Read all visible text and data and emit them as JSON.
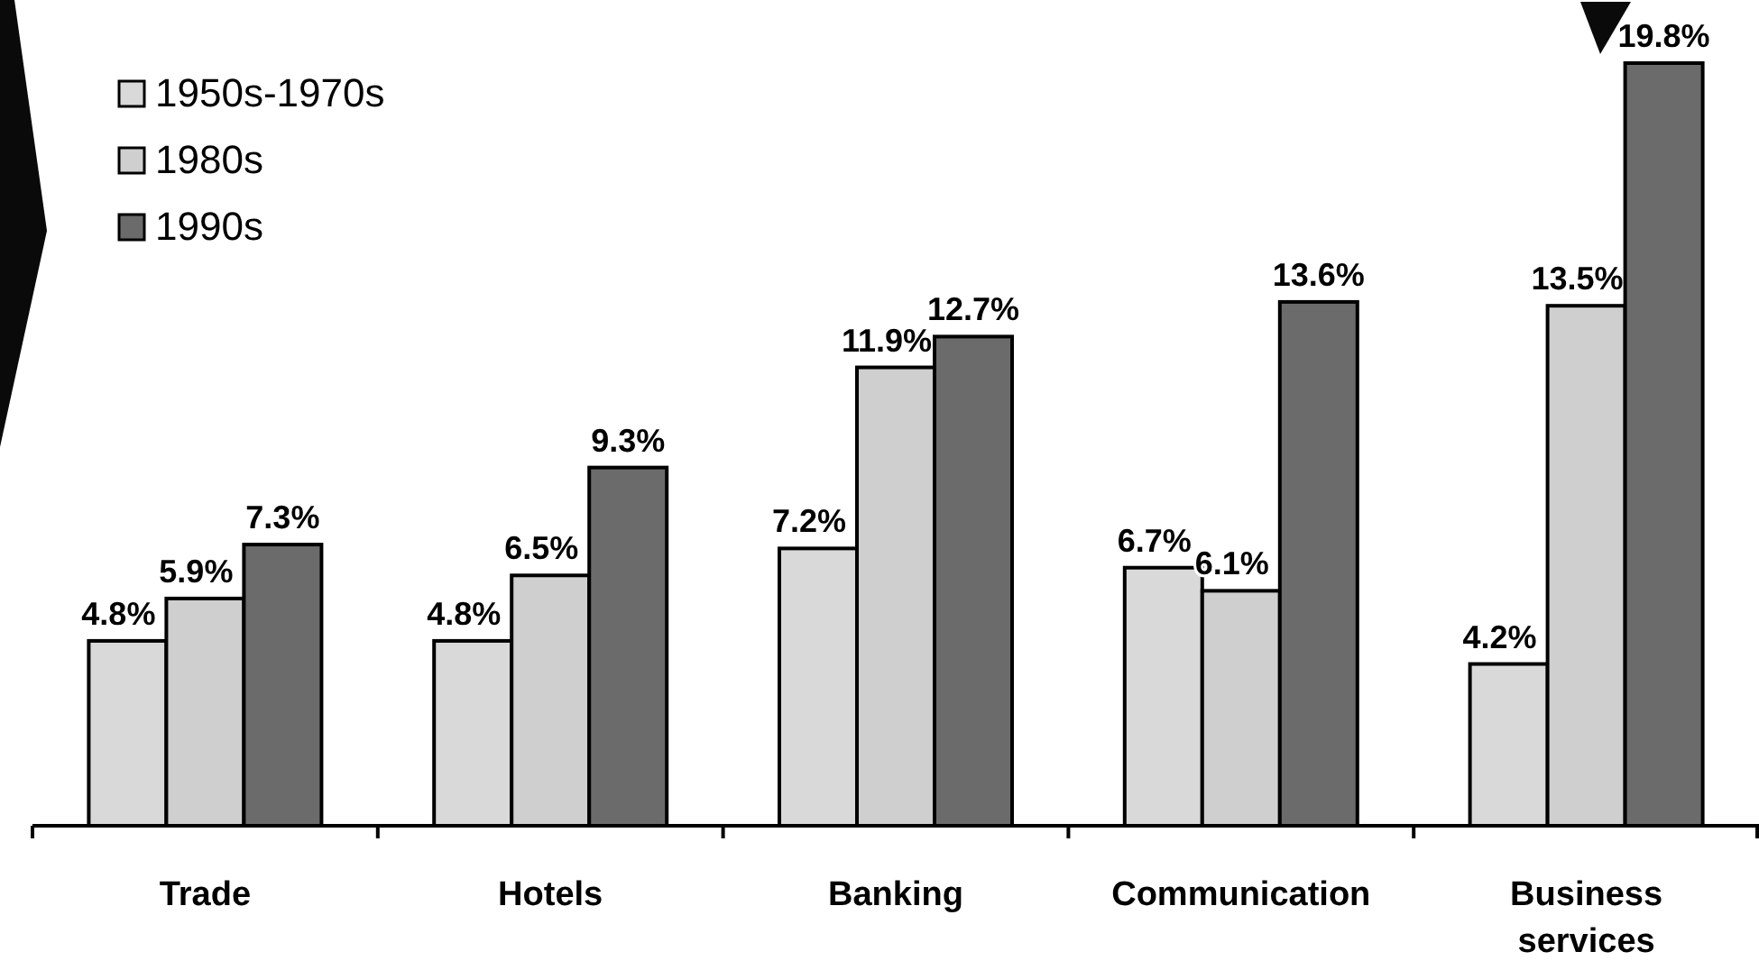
{
  "chart_data": {
    "type": "bar",
    "categories": [
      "Trade",
      "Hotels",
      "Banking",
      "Communication",
      "Business services"
    ],
    "series": [
      {
        "name": "1950s-1970s",
        "color": "#d9d9d9",
        "values": [
          4.8,
          4.8,
          7.2,
          6.7,
          4.2
        ],
        "value_labels": [
          "4.8%",
          "4.8%",
          "7.2%",
          "6.7%",
          "4.2%"
        ]
      },
      {
        "name": "1980s",
        "color": "#cfcfcf",
        "values": [
          5.9,
          6.5,
          11.9,
          6.1,
          13.5
        ],
        "value_labels": [
          "5.9%",
          "6.5%",
          "11.9%",
          "6.1%",
          "13.5%"
        ]
      },
      {
        "name": "1990s",
        "color": "#6b6b6b",
        "values": [
          7.3,
          9.3,
          12.7,
          13.6,
          19.8
        ],
        "value_labels": [
          "7.3%",
          "9.3%",
          "12.7%",
          "13.6%",
          "19.8%"
        ]
      }
    ],
    "legend": "top left"
  }
}
